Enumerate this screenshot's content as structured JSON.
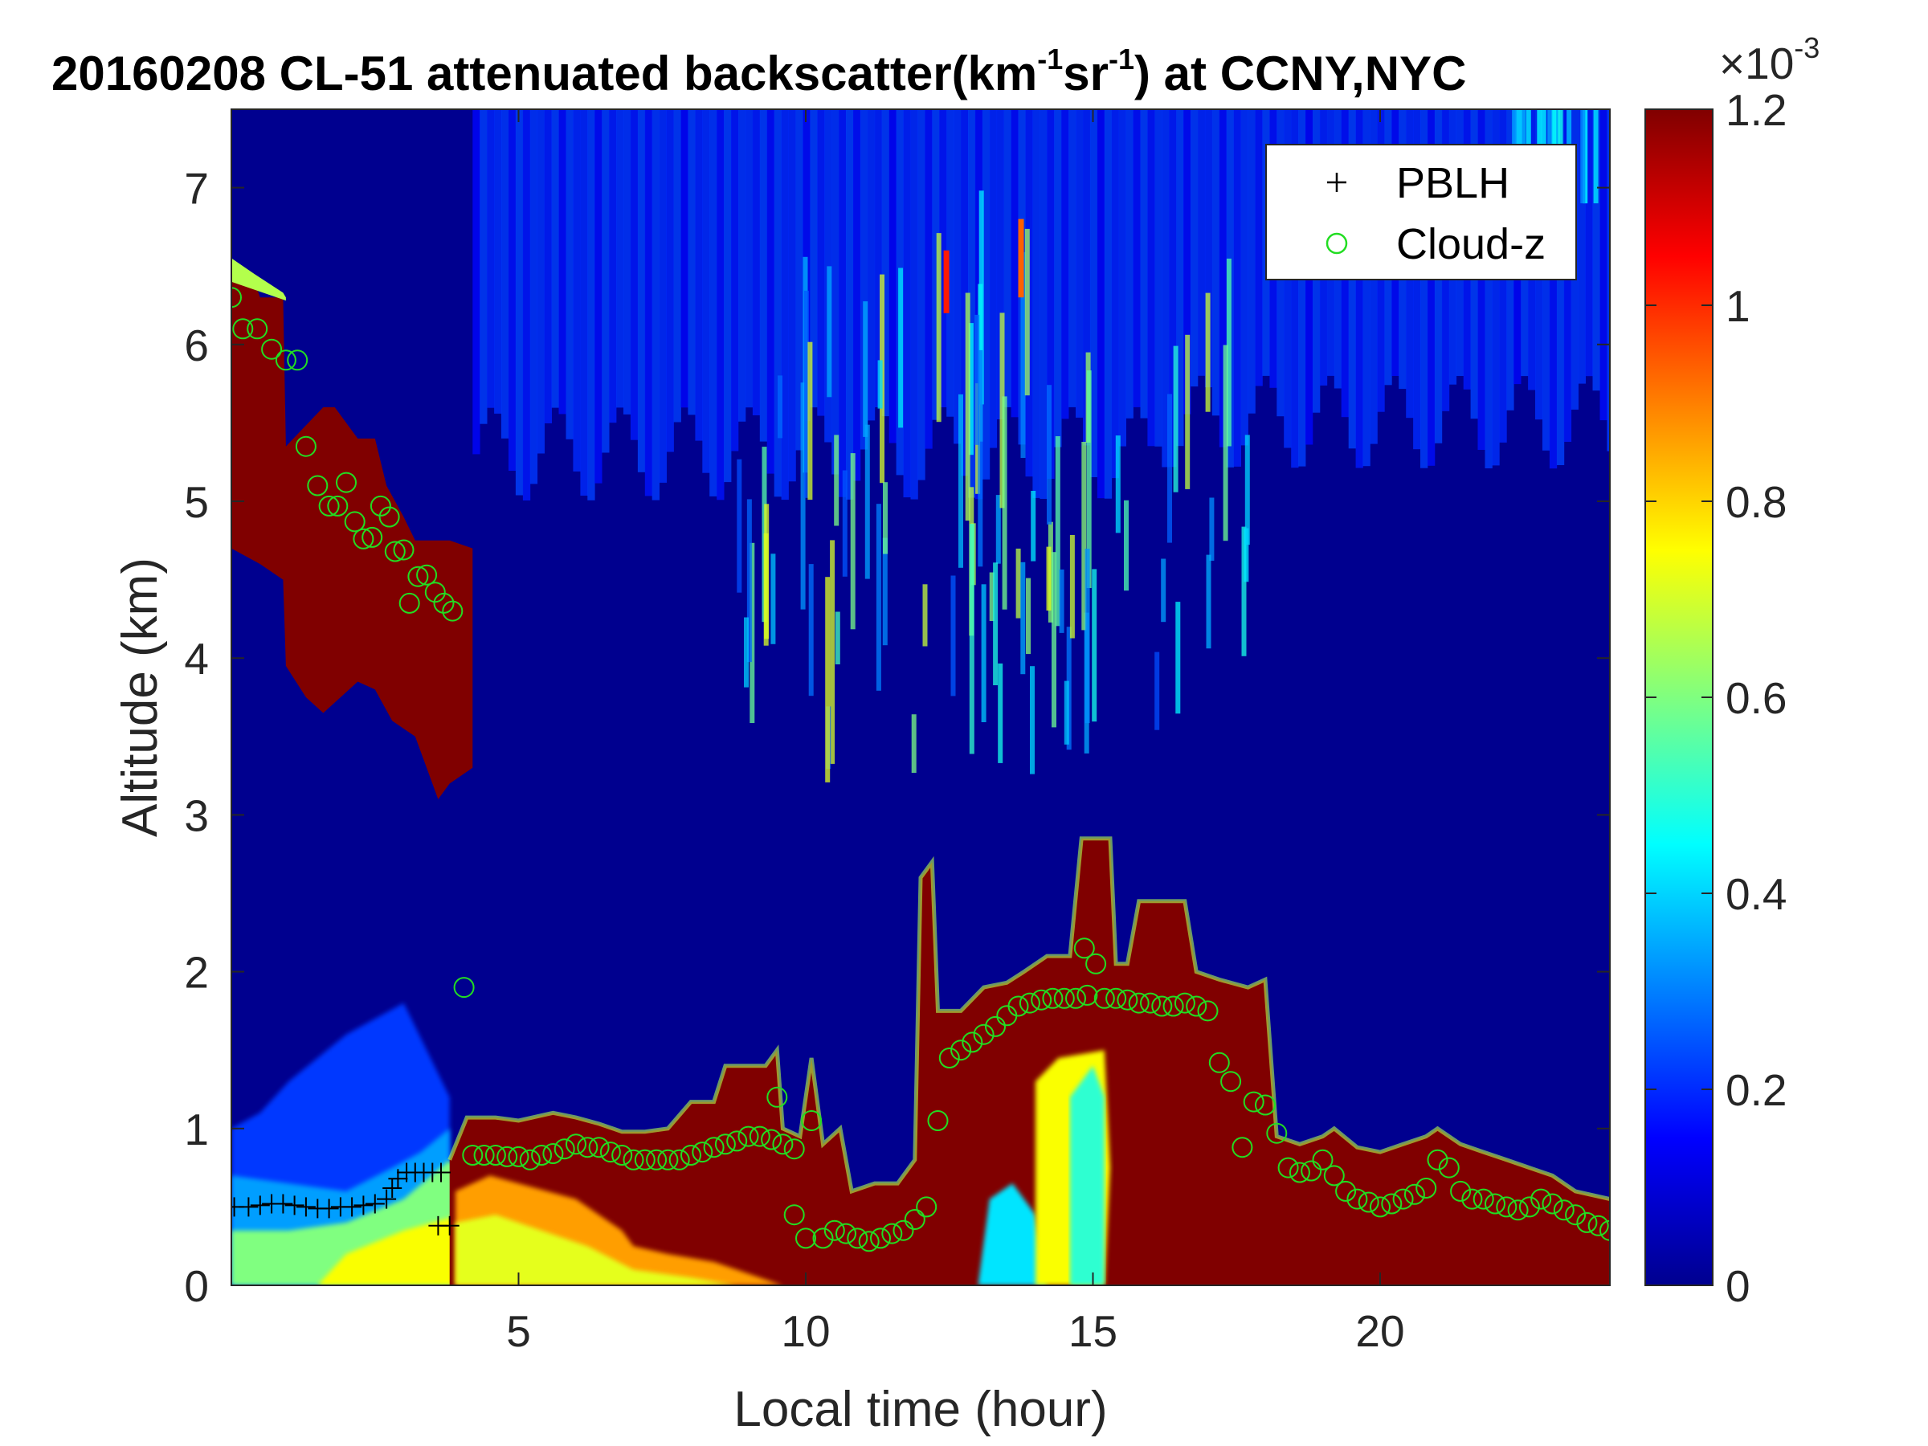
{
  "chart_data": {
    "type": "heatmap",
    "title": {
      "main": "20160208  CL-51 attenuated backscatter(km",
      "sup1": "-1",
      "mid": "sr",
      "sup2": "-1",
      "end": ") at CCNY,NYC"
    },
    "xlabel": "Local time (hour)",
    "ylabel": "Altitude (km)",
    "xlim": [
      0,
      24
    ],
    "ylim": [
      0,
      7.5
    ],
    "xticks": [
      5,
      10,
      15,
      20
    ],
    "yticks": [
      0,
      1,
      2,
      3,
      4,
      5,
      6,
      7
    ],
    "colorbar": {
      "colormap": "jet",
      "range": [
        0,
        0.0012
      ],
      "ticks": [
        "0",
        "0.2",
        "0.4",
        "0.6",
        "0.8",
        "1",
        "1.2"
      ],
      "exponent_base": "×10",
      "exponent_power": "-3"
    },
    "legend": {
      "position": "top-right",
      "entries": [
        {
          "marker": "+",
          "label": "PBLH",
          "color": "#000000"
        },
        {
          "marker": "o",
          "label": "Cloud-z",
          "color": "#22dd22"
        }
      ]
    },
    "series": [
      {
        "name": "PBLH",
        "points": [
          [
            0.05,
            0.5
          ],
          [
            0.3,
            0.5
          ],
          [
            0.5,
            0.51
          ],
          [
            0.7,
            0.52
          ],
          [
            0.9,
            0.52
          ],
          [
            1.1,
            0.51
          ],
          [
            1.3,
            0.5
          ],
          [
            1.5,
            0.49
          ],
          [
            1.7,
            0.49
          ],
          [
            1.9,
            0.5
          ],
          [
            2.1,
            0.5
          ],
          [
            2.3,
            0.51
          ],
          [
            2.5,
            0.52
          ],
          [
            2.7,
            0.55
          ],
          [
            2.8,
            0.62
          ],
          [
            2.9,
            0.68
          ],
          [
            3.05,
            0.72
          ],
          [
            3.2,
            0.72
          ],
          [
            3.35,
            0.72
          ],
          [
            3.5,
            0.72
          ],
          [
            3.65,
            0.72
          ],
          [
            3.6,
            0.38
          ],
          [
            3.8,
            0.38
          ]
        ]
      },
      {
        "name": "Cloud-z",
        "points": [
          [
            0.0,
            6.3
          ],
          [
            0.2,
            6.1
          ],
          [
            0.45,
            6.1
          ],
          [
            0.7,
            5.97
          ],
          [
            0.95,
            5.9
          ],
          [
            1.15,
            5.9
          ],
          [
            1.3,
            5.35
          ],
          [
            1.5,
            5.1
          ],
          [
            1.7,
            4.97
          ],
          [
            1.85,
            4.97
          ],
          [
            2.0,
            5.12
          ],
          [
            2.15,
            4.87
          ],
          [
            2.3,
            4.76
          ],
          [
            2.45,
            4.77
          ],
          [
            2.6,
            4.97
          ],
          [
            2.75,
            4.9
          ],
          [
            2.85,
            4.68
          ],
          [
            3.0,
            4.69
          ],
          [
            3.1,
            4.35
          ],
          [
            3.25,
            4.52
          ],
          [
            3.4,
            4.53
          ],
          [
            3.55,
            4.42
          ],
          [
            3.7,
            4.35
          ],
          [
            3.85,
            4.3
          ],
          [
            4.05,
            1.9
          ],
          [
            4.2,
            0.83
          ],
          [
            4.4,
            0.83
          ],
          [
            4.6,
            0.83
          ],
          [
            4.8,
            0.82
          ],
          [
            5.0,
            0.82
          ],
          [
            5.2,
            0.8
          ],
          [
            5.4,
            0.83
          ],
          [
            5.6,
            0.84
          ],
          [
            5.8,
            0.87
          ],
          [
            6.0,
            0.9
          ],
          [
            6.2,
            0.88
          ],
          [
            6.4,
            0.88
          ],
          [
            6.6,
            0.85
          ],
          [
            6.8,
            0.83
          ],
          [
            7.0,
            0.8
          ],
          [
            7.2,
            0.8
          ],
          [
            7.4,
            0.8
          ],
          [
            7.6,
            0.8
          ],
          [
            7.8,
            0.8
          ],
          [
            8.0,
            0.83
          ],
          [
            8.2,
            0.85
          ],
          [
            8.4,
            0.88
          ],
          [
            8.6,
            0.9
          ],
          [
            8.8,
            0.92
          ],
          [
            9.0,
            0.95
          ],
          [
            9.2,
            0.95
          ],
          [
            9.4,
            0.93
          ],
          [
            9.6,
            0.9
          ],
          [
            9.8,
            0.87
          ],
          [
            9.5,
            1.2
          ],
          [
            10.1,
            1.05
          ],
          [
            9.8,
            0.45
          ],
          [
            10.0,
            0.3
          ],
          [
            10.3,
            0.3
          ],
          [
            10.5,
            0.35
          ],
          [
            10.7,
            0.33
          ],
          [
            10.9,
            0.3
          ],
          [
            11.1,
            0.28
          ],
          [
            11.3,
            0.3
          ],
          [
            11.5,
            0.33
          ],
          [
            11.7,
            0.35
          ],
          [
            11.9,
            0.42
          ],
          [
            12.1,
            0.5
          ],
          [
            12.3,
            1.05
          ],
          [
            12.5,
            1.45
          ],
          [
            12.7,
            1.5
          ],
          [
            12.9,
            1.55
          ],
          [
            13.1,
            1.6
          ],
          [
            13.3,
            1.65
          ],
          [
            13.5,
            1.72
          ],
          [
            13.7,
            1.78
          ],
          [
            13.9,
            1.8
          ],
          [
            14.1,
            1.82
          ],
          [
            14.3,
            1.83
          ],
          [
            14.5,
            1.83
          ],
          [
            14.7,
            1.83
          ],
          [
            14.9,
            1.85
          ],
          [
            14.85,
            2.15
          ],
          [
            15.05,
            2.05
          ],
          [
            15.2,
            1.83
          ],
          [
            15.4,
            1.83
          ],
          [
            15.6,
            1.82
          ],
          [
            15.8,
            1.8
          ],
          [
            16.0,
            1.8
          ],
          [
            16.2,
            1.78
          ],
          [
            16.4,
            1.78
          ],
          [
            16.6,
            1.8
          ],
          [
            16.8,
            1.78
          ],
          [
            17.0,
            1.75
          ],
          [
            17.2,
            1.42
          ],
          [
            17.4,
            1.3
          ],
          [
            17.6,
            0.88
          ],
          [
            17.8,
            1.17
          ],
          [
            18.0,
            1.15
          ],
          [
            18.2,
            0.97
          ],
          [
            18.4,
            0.75
          ],
          [
            18.6,
            0.72
          ],
          [
            18.8,
            0.73
          ],
          [
            19.0,
            0.8
          ],
          [
            19.2,
            0.7
          ],
          [
            19.4,
            0.6
          ],
          [
            19.6,
            0.55
          ],
          [
            19.8,
            0.53
          ],
          [
            20.0,
            0.5
          ],
          [
            20.2,
            0.52
          ],
          [
            20.4,
            0.55
          ],
          [
            20.6,
            0.58
          ],
          [
            20.8,
            0.62
          ],
          [
            21.0,
            0.8
          ],
          [
            21.2,
            0.75
          ],
          [
            21.4,
            0.6
          ],
          [
            21.6,
            0.55
          ],
          [
            21.8,
            0.55
          ],
          [
            22.0,
            0.52
          ],
          [
            22.2,
            0.5
          ],
          [
            22.4,
            0.48
          ],
          [
            22.6,
            0.5
          ],
          [
            22.8,
            0.55
          ],
          [
            23.0,
            0.52
          ],
          [
            23.2,
            0.48
          ],
          [
            23.4,
            0.45
          ],
          [
            23.6,
            0.4
          ],
          [
            23.8,
            0.38
          ],
          [
            24.0,
            0.35
          ]
        ]
      }
    ]
  }
}
